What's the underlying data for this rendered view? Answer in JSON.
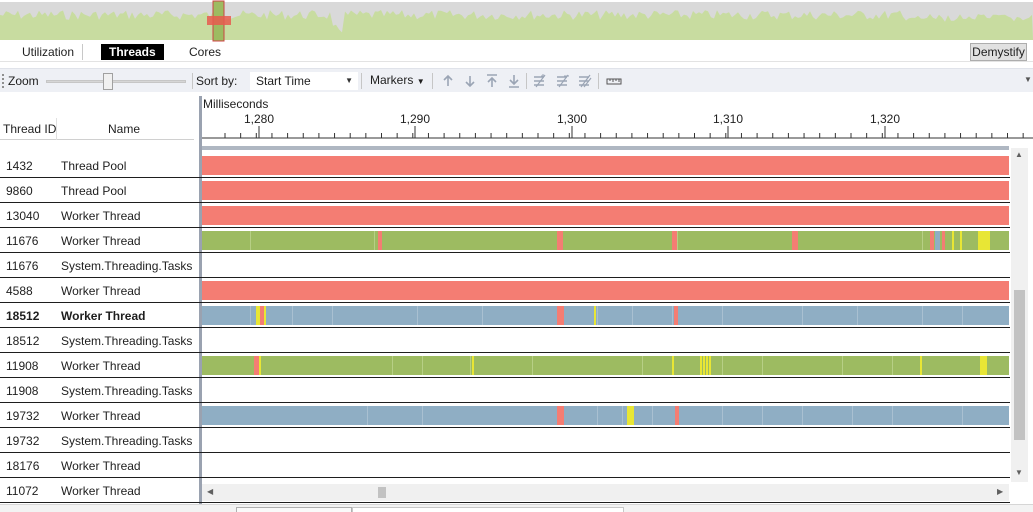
{
  "colors": {
    "execution": "#9dbb61",
    "synchronization": "#f47d73",
    "io": "#8faec4",
    "preemption": "#e8e635",
    "overview_fill": "#c8dca0",
    "overview_bg": "#d4d4d4",
    "overview_handle": "#e85a4f"
  },
  "tabs": [
    {
      "label": "Utilization",
      "active": false
    },
    {
      "label": "Threads",
      "active": true
    },
    {
      "label": "Cores",
      "active": false
    }
  ],
  "demystify_label": "Demystify",
  "toolbar": {
    "zoom_label": "Zoom",
    "zoom_level": 0.44,
    "sort_label": "Sort by:",
    "sort_value": "Start Time",
    "markers_label": "Markers",
    "icons": [
      "arrow-up-icon",
      "arrow-down-icon",
      "move-to-top-icon",
      "move-to-bottom-icon",
      "filter-add-icon",
      "filter-remove-icon",
      "filter-clear-icon",
      "ruler-icon"
    ]
  },
  "columns": {
    "thread_id": "Thread ID",
    "name": "Name"
  },
  "timeline": {
    "unit_label": "Milliseconds",
    "tick_labels": [
      "1,280",
      "1,290",
      "1,300",
      "1,310",
      "1,320"
    ]
  },
  "threads": [
    {
      "id": "1432",
      "name": "Thread Pool",
      "bold": false,
      "track": "sync"
    },
    {
      "id": "9860",
      "name": "Thread Pool",
      "bold": false,
      "track": "sync"
    },
    {
      "id": "13040",
      "name": "Worker Thread",
      "bold": false,
      "track": "sync"
    },
    {
      "id": "11676",
      "name": "Worker Thread",
      "bold": false,
      "track": "exec_a"
    },
    {
      "id": "11676",
      "name": "System.Threading.Tasks",
      "bold": false,
      "track": "empty"
    },
    {
      "id": "4588",
      "name": "Worker Thread",
      "bold": false,
      "track": "sync"
    },
    {
      "id": "18512",
      "name": "Worker Thread",
      "bold": true,
      "track": "io_a"
    },
    {
      "id": "18512",
      "name": "System.Threading.Tasks",
      "bold": false,
      "track": "empty"
    },
    {
      "id": "11908",
      "name": "Worker Thread",
      "bold": false,
      "track": "exec_b"
    },
    {
      "id": "11908",
      "name": "System.Threading.Tasks",
      "bold": false,
      "track": "empty"
    },
    {
      "id": "19732",
      "name": "Worker Thread",
      "bold": false,
      "track": "io_b"
    },
    {
      "id": "19732",
      "name": "System.Threading.Tasks",
      "bold": false,
      "track": "empty"
    },
    {
      "id": "18176",
      "name": "Worker Thread",
      "bold": false,
      "track": "empty"
    },
    {
      "id": "11072",
      "name": "Worker Thread",
      "bold": false,
      "track": "empty"
    }
  ]
}
